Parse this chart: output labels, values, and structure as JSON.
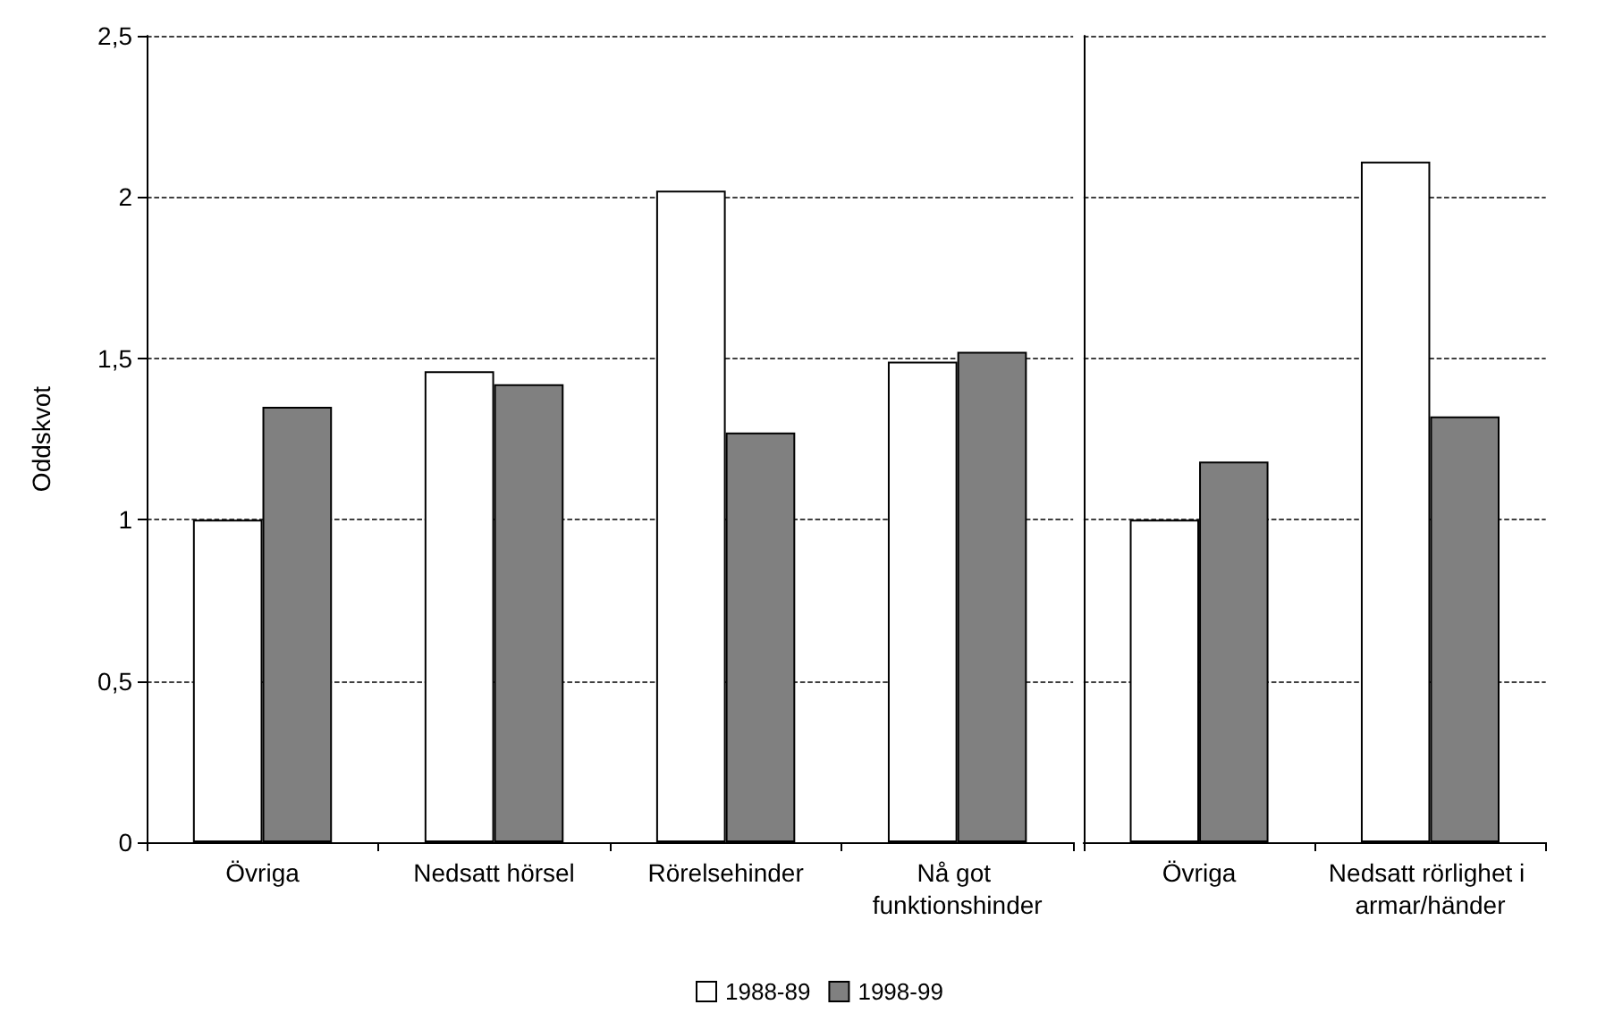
{
  "chart_data": [
    {
      "type": "bar",
      "ylabel": "Oddskvot",
      "categories": [
        "Övriga",
        "Nedsatt hörsel",
        "Rörelsehinder",
        "Nå got funktionshinder"
      ],
      "series": [
        {
          "name": "1988-89",
          "color": "#ffffff",
          "values": [
            1,
            1.46,
            2.02,
            1.49
          ]
        },
        {
          "name": "1998-99",
          "color": "#808080",
          "values": [
            1.35,
            1.42,
            1.27,
            1.52
          ]
        }
      ],
      "ylim": [
        0,
        2.5
      ],
      "yticks": [
        0,
        {
          "value": 0.5,
          "label": "0,5"
        },
        1,
        {
          "value": 1.5,
          "label": "1,5"
        },
        2,
        {
          "value": 2.5,
          "label": "2,5"
        }
      ],
      "grid": "y",
      "legend": "bottom"
    },
    {
      "type": "bar",
      "categories": [
        "Övriga",
        "Nedsatt rörlighet i armar/händer"
      ],
      "series": [
        {
          "color": "#ffffff",
          "values": [
            1,
            2.11
          ]
        },
        {
          "color": "#808080",
          "values": [
            1.18,
            1.32
          ]
        }
      ],
      "ylim": [
        0,
        2.5
      ],
      "yticks": [
        0,
        0.5,
        1,
        1.5,
        2,
        2.5
      ],
      "grid": "y",
      "tick_labels": "x"
    }
  ]
}
